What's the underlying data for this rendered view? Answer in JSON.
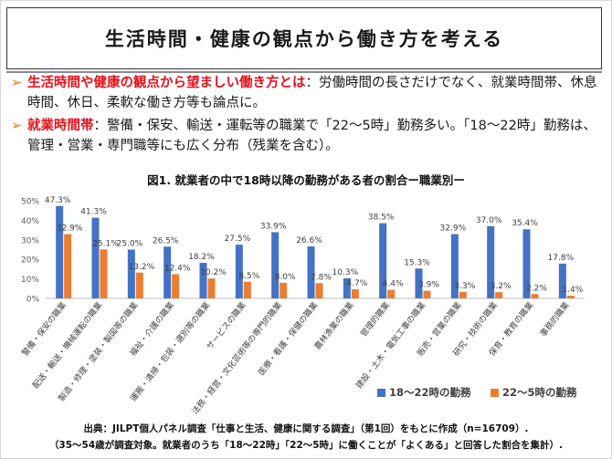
{
  "slide": {
    "title": "生活時間・健康の観点から働き方を考える",
    "bullets": [
      {
        "marker": "➢",
        "head": "生活時間や健康の観点から望ましい働き方とは",
        "text": "：労働時間の長さだけでなく、就業時間帯、休息時間、休日、柔軟な働き方等も論点に。"
      },
      {
        "marker": "➢",
        "head": "就業時間帯",
        "text": "：警備・保安、輸送・運転等の職業で「22～5時」勤務多い。「18～22時」勤務は、管理・営業・専門職等にも広く分布（残業を含む）。"
      }
    ],
    "footer_line1": "出典：JILPT個人パネル調査「仕事と生活、健康に関する調査」（第1回）をもとに作成（n=16709）.",
    "footer_line2": "（35～54歳が調査対象。就業者のうち「18～22時」「22～5時」に働くことが「よくある」と回答した割合を集計）."
  },
  "chart_data": {
    "type": "bar",
    "title": "図1. 就業者の中で18時以降の勤務がある者の割合ー職業別ー",
    "categories": [
      "警備・保安の職業",
      "配送・輸送・機械運転の職業",
      "製造・修理・塗装・製図等の職業",
      "福祉・介護の職業",
      "運搬・清掃・包装・選別等の職業",
      "サービスの職業",
      "法務・経営・文化芸術等の専門的職業",
      "医療・看護・保健の職業",
      "農林漁業の職業",
      "管理的職業",
      "建設・土木・電気工事の職業",
      "販売・営業の職業",
      "研究・技術の職業",
      "保育・教育の職業",
      "事務的職業"
    ],
    "series": [
      {
        "name": "18～22時の勤務",
        "color": "#4472c4",
        "values": [
          47.3,
          41.3,
          25.0,
          26.5,
          18.2,
          27.5,
          33.9,
          26.6,
          10.3,
          38.5,
          15.3,
          32.9,
          37.0,
          35.4,
          17.8
        ],
        "labels": [
          "47.3%",
          "41.3%",
          "25.0%",
          "26.5%",
          "18.2%",
          "27.5%",
          "33.9%",
          "26.6%",
          "10.3%",
          "38.5%",
          "15.3%",
          "32.9%",
          "37.0%",
          "35.4%",
          "17.8%"
        ]
      },
      {
        "name": "22～5時の勤務",
        "color": "#ed7d31",
        "values": [
          32.9,
          25.1,
          13.2,
          12.4,
          10.2,
          8.5,
          8.0,
          7.8,
          4.7,
          4.4,
          3.9,
          3.3,
          3.2,
          2.2,
          1.4
        ],
        "labels": [
          "32.9%",
          "25.1%",
          "13.2%",
          "12.4%",
          "10.2%",
          "8.5%",
          "8.0%",
          "7.8%",
          "4.7%",
          "4.4%",
          "3.9%",
          "3.3%",
          "3.2%",
          "2.2%",
          "1.4%"
        ]
      }
    ],
    "yticks": [
      "0%",
      "10%",
      "20%",
      "30%",
      "40%",
      "50%"
    ],
    "ylim": [
      0,
      50
    ],
    "grid": false,
    "legend": "bottom-right",
    "xlabel": "",
    "ylabel": ""
  }
}
